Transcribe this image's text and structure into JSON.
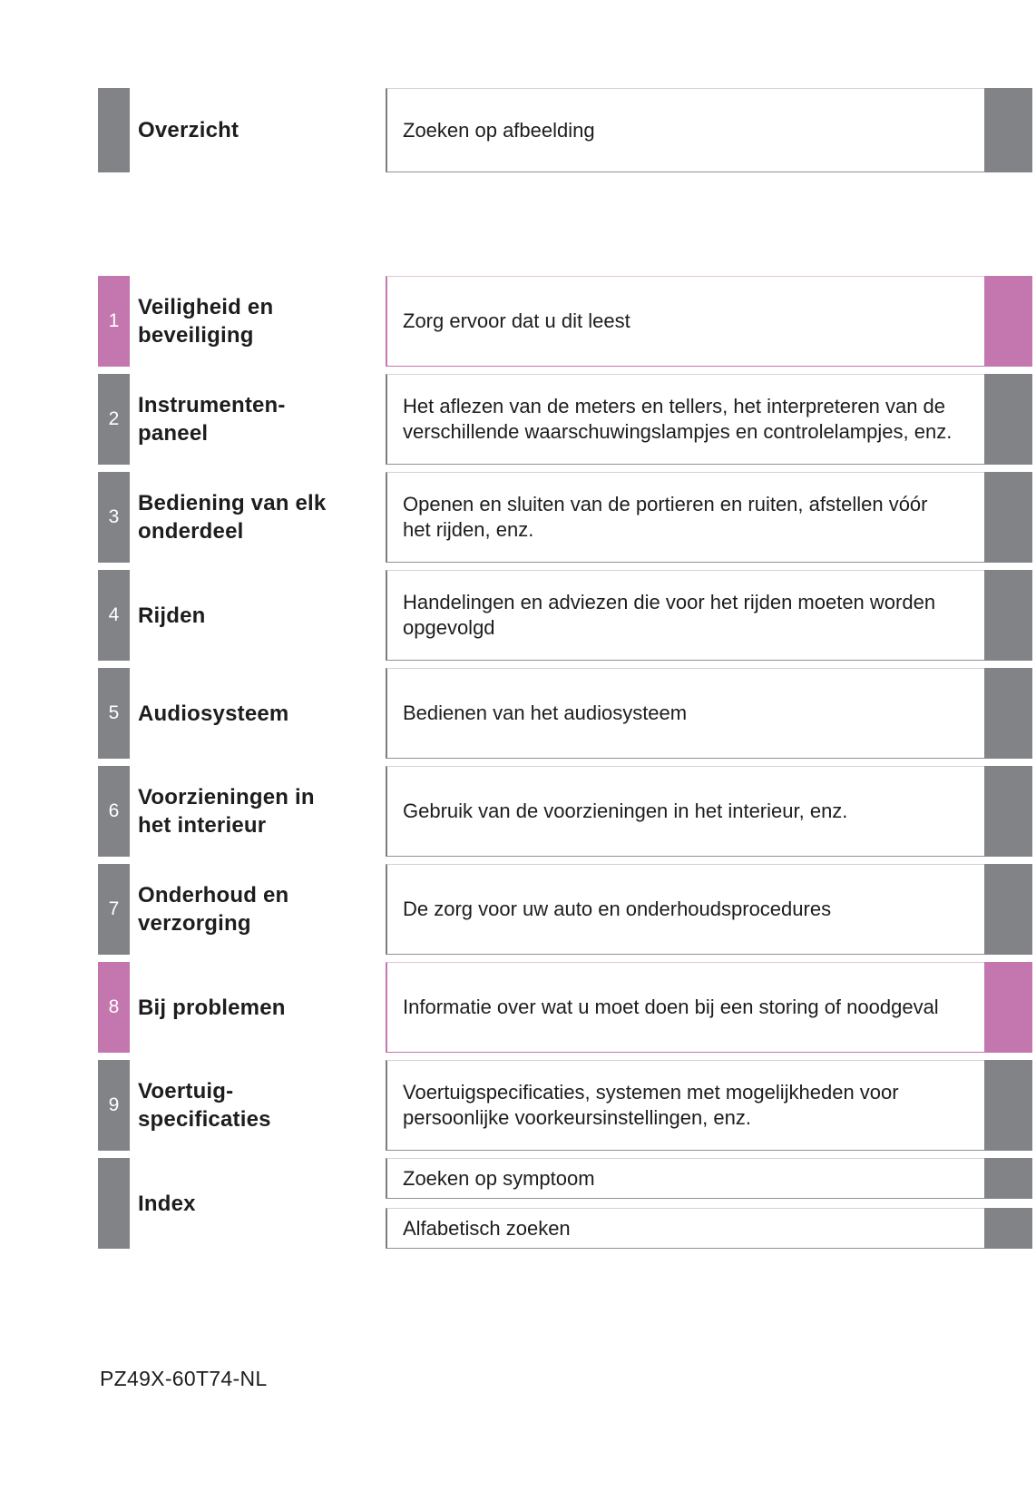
{
  "colors": {
    "tab_gray": "#818386",
    "tab_pink": "#c476ae"
  },
  "overview": {
    "title": "Overzicht",
    "description": "Zoeken op afbeelding"
  },
  "sections": [
    {
      "number": "1",
      "accent": "pink",
      "title": "Veiligheid en\nbeveiliging",
      "description": "Zorg ervoor dat u dit leest"
    },
    {
      "number": "2",
      "accent": "gray",
      "title": "Instrumenten-\npaneel",
      "description": "Het aflezen van de meters en tellers, het interpreteren van de\nverschillende waarschuwingslampjes en controlelampjes, enz."
    },
    {
      "number": "3",
      "accent": "gray",
      "title": "Bediening van elk\nonderdeel",
      "description": "Openen en sluiten van de portieren en ruiten, afstellen vóór\nhet rijden, enz."
    },
    {
      "number": "4",
      "accent": "gray",
      "title": "Rijden",
      "description": "Handelingen en adviezen die voor het rijden moeten worden\nopgevolgd"
    },
    {
      "number": "5",
      "accent": "gray",
      "title": "Audiosysteem",
      "description": "Bedienen van het audiosysteem"
    },
    {
      "number": "6",
      "accent": "gray",
      "title": "Voorzieningen in\nhet interieur",
      "description": "Gebruik van de voorzieningen in het interieur, enz."
    },
    {
      "number": "7",
      "accent": "gray",
      "title": "Onderhoud en\nverzorging",
      "description": "De zorg voor uw auto en onderhoudsprocedures"
    },
    {
      "number": "8",
      "accent": "pink",
      "title": "Bij problemen",
      "description": "Informatie over wat u moet doen bij een storing of noodgeval"
    },
    {
      "number": "9",
      "accent": "gray",
      "title": "Voertuig-\nspecificaties",
      "description": "Voertuigspecificaties, systemen met mogelijkheden voor\npersoonlijke voorkeursinstellingen, enz."
    }
  ],
  "index": {
    "title": "Index",
    "items": [
      {
        "label": "Zoeken op symptoom"
      },
      {
        "label": "Alfabetisch zoeken"
      }
    ]
  },
  "footer": {
    "code": "PZ49X-60T74-NL"
  }
}
